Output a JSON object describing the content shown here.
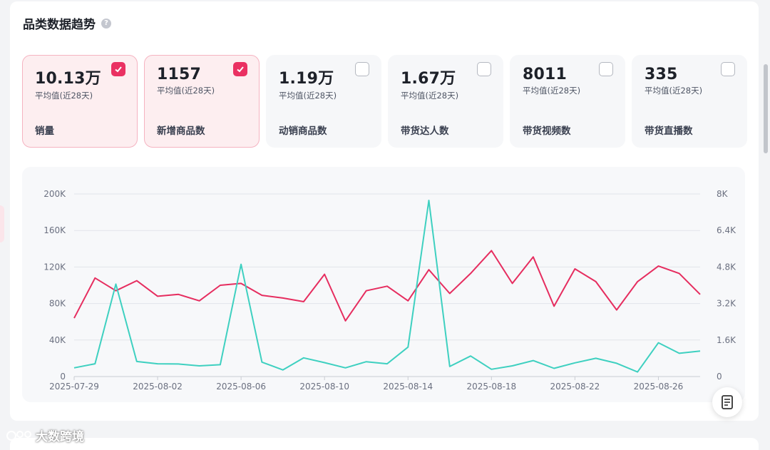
{
  "header": {
    "title": "品类数据趋势",
    "help_icon": "question-icon"
  },
  "cards": [
    {
      "value": "10.13万",
      "sub": "平均值(近28天)",
      "label": "销量",
      "checked": true
    },
    {
      "value": "1157",
      "sub": "平均值(近28天)",
      "label": "新增商品数",
      "checked": true
    },
    {
      "value": "1.19万",
      "sub": "平均值(近28天)",
      "label": "动销商品数",
      "checked": false
    },
    {
      "value": "1.67万",
      "sub": "平均值(近28天)",
      "label": "带货达人数",
      "checked": false
    },
    {
      "value": "8011",
      "sub": "平均值(近28天)",
      "label": "带货视频数",
      "checked": false
    },
    {
      "value": "335",
      "sub": "平均值(近28天)",
      "label": "带货直播数",
      "checked": false
    }
  ],
  "chart_data": {
    "type": "line",
    "x": [
      "2025-07-29",
      "2025-07-30",
      "2025-07-31",
      "2025-08-01",
      "2025-08-02",
      "2025-08-03",
      "2025-08-04",
      "2025-08-05",
      "2025-08-06",
      "2025-08-07",
      "2025-08-08",
      "2025-08-09",
      "2025-08-10",
      "2025-08-11",
      "2025-08-12",
      "2025-08-13",
      "2025-08-14",
      "2025-08-15",
      "2025-08-16",
      "2025-08-17",
      "2025-08-18",
      "2025-08-19",
      "2025-08-20",
      "2025-08-21",
      "2025-08-22",
      "2025-08-23",
      "2025-08-24",
      "2025-08-25",
      "2025-08-26",
      "2025-08-27",
      "2025-08-28"
    ],
    "x_tick_labels": [
      "2025-07-29",
      "2025-08-02",
      "2025-08-06",
      "2025-08-10",
      "2025-08-14",
      "2025-08-18",
      "2025-08-22",
      "2025-08-26"
    ],
    "left_ticks": [
      "0",
      "40K",
      "80K",
      "120K",
      "160K",
      "200K"
    ],
    "right_ticks": [
      "0",
      "1.6K",
      "3.2K",
      "4.8K",
      "6.4K",
      "8K"
    ],
    "left_ylim": [
      0,
      200000
    ],
    "right_ylim": [
      0,
      8000
    ],
    "series": [
      {
        "name": "销量",
        "axis": "left",
        "color": "#e62d5f",
        "values": [
          64000,
          108000,
          94000,
          105000,
          88000,
          90000,
          83000,
          100000,
          102000,
          89000,
          86000,
          82000,
          112000,
          61000,
          94000,
          99000,
          83000,
          117000,
          91000,
          113000,
          138000,
          102000,
          131000,
          77000,
          118000,
          104000,
          73000,
          104000,
          121000,
          113000,
          90000
        ]
      },
      {
        "name": "新增商品数",
        "axis": "right",
        "color": "#3ed0c0",
        "values": [
          380,
          560,
          4050,
          660,
          560,
          550,
          470,
          520,
          4920,
          630,
          290,
          820,
          610,
          380,
          650,
          560,
          1290,
          7720,
          440,
          900,
          320,
          470,
          700,
          360,
          600,
          800,
          580,
          200,
          1480,
          1020,
          1120
        ]
      }
    ],
    "grid": true
  },
  "fab": {
    "icon": "document-icon"
  },
  "brand": {
    "text": "大数跨境",
    "icon": "brand-logo-icon"
  },
  "colors": {
    "accent": "#e62d5f",
    "accent_light": "#fdeef0",
    "teal": "#3ed0c0"
  }
}
